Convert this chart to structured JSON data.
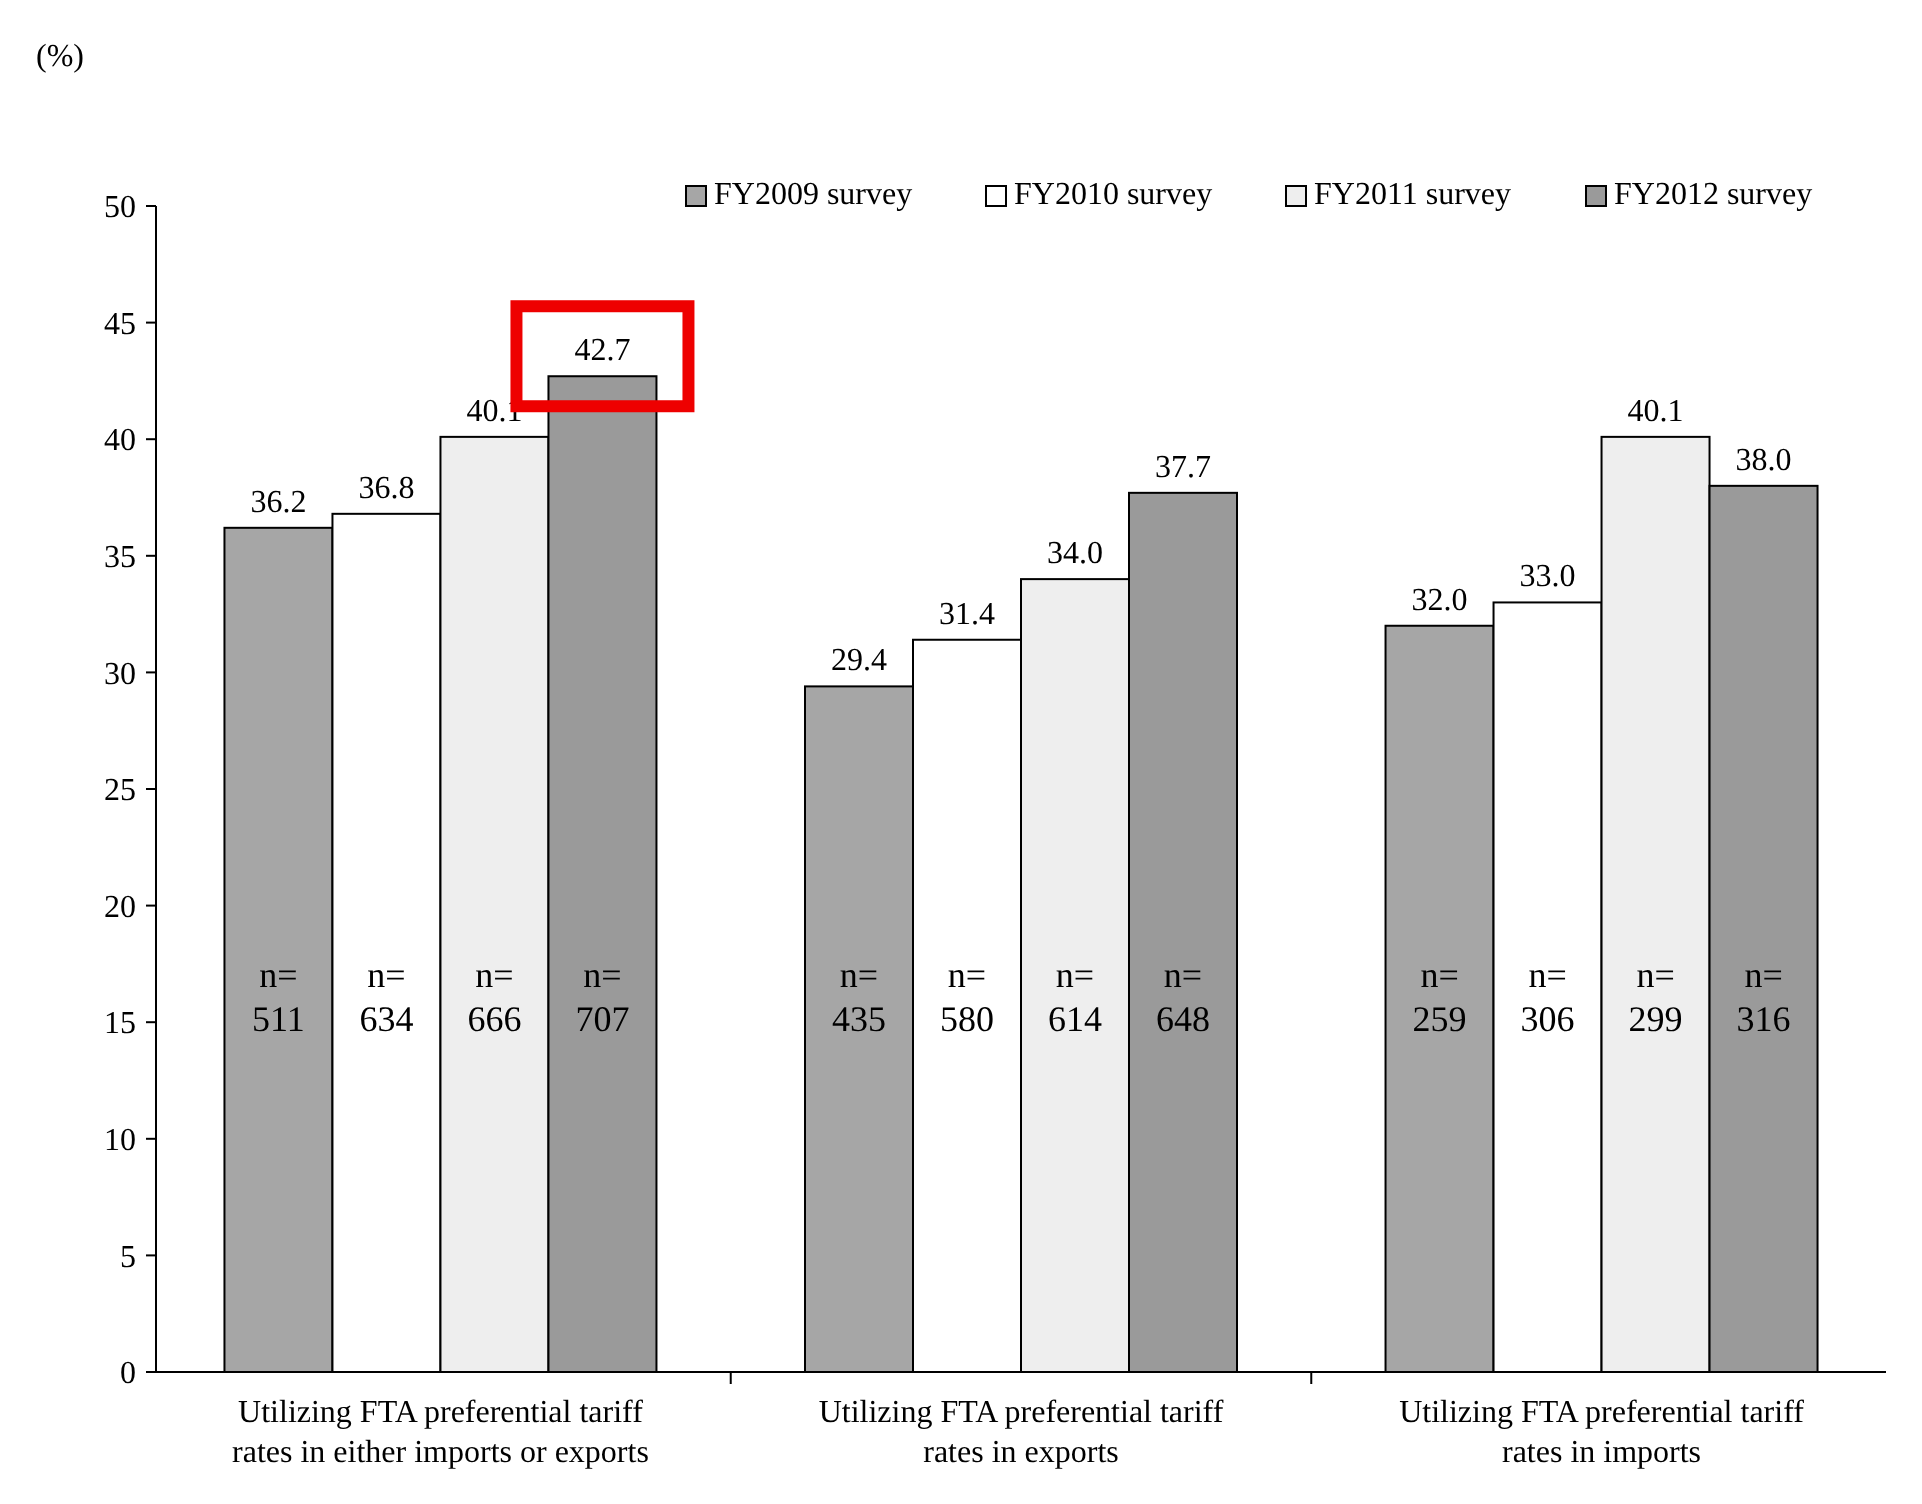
{
  "chart_data": {
    "type": "bar",
    "ylabel": "(%)",
    "categories": [
      "Utilizing FTA preferential tariff rates in either imports or exports",
      "Utilizing FTA preferential tariff rates in exports",
      "Utilizing FTA preferential tariff rates in imports"
    ],
    "series": [
      {
        "name": "FY2009 survey",
        "color": "#a6a6a6",
        "values": [
          36.2,
          29.4,
          32.0
        ],
        "value_labels": [
          "36.2",
          "29.4",
          "32.0"
        ]
      },
      {
        "name": "FY2010 survey",
        "color": "#ffffff",
        "values": [
          36.8,
          31.4,
          33.0
        ],
        "value_labels": [
          "36.8",
          "31.4",
          "33.0"
        ]
      },
      {
        "name": "FY2011 survey",
        "color": "#eeeeee",
        "values": [
          40.1,
          34.0,
          40.1
        ],
        "value_labels": [
          "40.1",
          "34.0",
          "40.1"
        ]
      },
      {
        "name": "FY2012 survey",
        "color": "#9a9a9a",
        "values": [
          42.7,
          37.7,
          38.0
        ],
        "value_labels": [
          "42.7",
          "37.7",
          "38.0"
        ]
      }
    ],
    "ylim": [
      0,
      50
    ],
    "yticks": [
      0,
      5,
      10,
      15,
      20,
      25,
      30,
      35,
      40,
      45,
      50
    ],
    "grid": false,
    "legend": "top right",
    "annotations": [
      "n=\n511",
      "n=\n634",
      "n=\n666",
      "n=\n707",
      "n=\n435",
      "n=\n580",
      "n=\n614",
      "n=\n648",
      "n=\n259",
      "n=\n306",
      "n=\n299",
      "n=\n316"
    ]
  }
}
